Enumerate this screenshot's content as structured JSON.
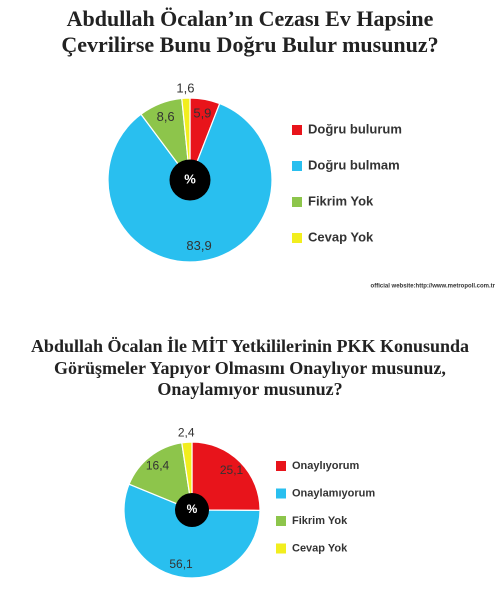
{
  "chart_data": [
    {
      "type": "pie",
      "title": "Abdullah Öcalan’ın Cezası Ev Hapsine\nÇevrilirse Bunu Doğru Bulur musunuz?",
      "categories": [
        "Doğru bulurum",
        "Doğru bulmam",
        "Fikrim Yok",
        "Cevap Yok"
      ],
      "values": [
        5.9,
        83.9,
        8.6,
        1.6
      ],
      "value_labels": [
        "5,9",
        "83,9",
        "8,6",
        "1,6"
      ],
      "colors": [
        "#e8141b",
        "#29bfef",
        "#8dc54b",
        "#f2ee1e"
      ],
      "center_label": "%",
      "source": "official website:http://www.metropoll.com.tr"
    },
    {
      "type": "pie",
      "title": "Abdullah Öcalan İle MİT Yetkililerinin PKK Konusunda\nGörüşmeler Yapıyor Olmasını Onaylıyor musunuz,\nOnaylamıyor musunuz?",
      "categories": [
        "Onaylıyorum",
        "Onaylamıyorum",
        "Fikrim Yok",
        "Cevap Yok"
      ],
      "values": [
        25.1,
        56.1,
        16.4,
        2.4
      ],
      "value_labels": [
        "25,1",
        "56,1",
        "16,4",
        "2,4"
      ],
      "colors": [
        "#e8141b",
        "#29bfef",
        "#8dc54b",
        "#f2ee1e"
      ],
      "center_label": "%"
    }
  ]
}
